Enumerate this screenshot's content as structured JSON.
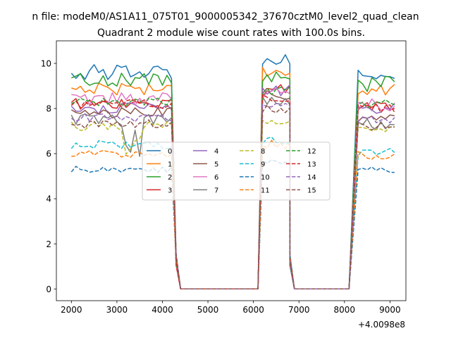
{
  "suptitle": "n file: modeM0/AS1A11_075T01_9000005342_37670cztM0_level2_quad_clean",
  "chart_data": {
    "type": "line",
    "title": "Quadrant 2 module wise count rates with 100.0s bins.",
    "xlabel": "",
    "ylabel": "",
    "x_offset_label": "+4.0098e8",
    "xlim": [
      1670,
      9350
    ],
    "ylim": [
      -0.52,
      11.0
    ],
    "xticks": [
      2000,
      3000,
      4000,
      5000,
      6000,
      7000,
      8000,
      9000
    ],
    "yticks": [
      0,
      2,
      4,
      6,
      8,
      10
    ],
    "grid": false,
    "legend": {
      "position": "center",
      "ncol": 4
    },
    "segments": [
      {
        "start": 2000,
        "end": 4200
      },
      {
        "start": 6200,
        "end": 6800
      },
      {
        "start": 8300,
        "end": 9100
      }
    ],
    "zero_gaps": [
      [
        4400,
        6100
      ],
      [
        6900,
        8100
      ]
    ],
    "series": [
      {
        "name": "0",
        "color": "#1f77b4",
        "dash": false,
        "seg_levels": [
          9.6,
          10.3,
          9.5
        ],
        "amp": 0.35,
        "dip": 0.0
      },
      {
        "name": "1",
        "color": "#ff7f0e",
        "dash": false,
        "seg_levels": [
          8.9,
          9.7,
          8.8
        ],
        "amp": 0.3,
        "dip": 0.0
      },
      {
        "name": "2",
        "color": "#2ca02c",
        "dash": false,
        "seg_levels": [
          9.3,
          9.3,
          9.1
        ],
        "amp": 0.35,
        "dip": 0.0
      },
      {
        "name": "3",
        "color": "#d62728",
        "dash": false,
        "seg_levels": [
          8.2,
          8.9,
          8.1
        ],
        "amp": 0.25,
        "dip": 0.0
      },
      {
        "name": "4",
        "color": "#9467bd",
        "dash": false,
        "seg_levels": [
          8.0,
          8.8,
          8.0
        ],
        "amp": 0.25,
        "dip": 0.0
      },
      {
        "name": "5",
        "color": "#8c564b",
        "dash": false,
        "seg_levels": [
          7.8,
          8.6,
          7.6
        ],
        "amp": 0.25,
        "dip": 0.0
      },
      {
        "name": "6",
        "color": "#e377c2",
        "dash": false,
        "seg_levels": [
          8.4,
          8.7,
          8.2
        ],
        "amp": 0.3,
        "dip": 0.0
      },
      {
        "name": "7",
        "color": "#7f7f7f",
        "dash": false,
        "seg_levels": [
          7.5,
          8.4,
          7.3
        ],
        "amp": 0.25,
        "dip": 1.7
      },
      {
        "name": "8",
        "color": "#bcbd22",
        "dash": true,
        "seg_levels": [
          7.2,
          7.3,
          7.0
        ],
        "amp": 0.2,
        "dip": 1.2
      },
      {
        "name": "9",
        "color": "#17becf",
        "dash": true,
        "seg_levels": [
          6.4,
          6.6,
          6.1
        ],
        "amp": 0.2,
        "dip": 0.0
      },
      {
        "name": "10",
        "color": "#1f77b4",
        "dash": true,
        "seg_levels": [
          5.3,
          5.6,
          5.3
        ],
        "amp": 0.15,
        "dip": 0.0
      },
      {
        "name": "11",
        "color": "#ff7f0e",
        "dash": true,
        "seg_levels": [
          6.0,
          6.4,
          5.9
        ],
        "amp": 0.2,
        "dip": 0.0
      },
      {
        "name": "12",
        "color": "#2ca02c",
        "dash": true,
        "seg_levels": [
          8.3,
          8.8,
          8.2
        ],
        "amp": 0.2,
        "dip": 0.0
      },
      {
        "name": "13",
        "color": "#d62728",
        "dash": true,
        "seg_levels": [
          8.2,
          8.5,
          8.0
        ],
        "amp": 0.2,
        "dip": 0.0
      },
      {
        "name": "14",
        "color": "#9467bd",
        "dash": true,
        "seg_levels": [
          7.6,
          8.2,
          7.5
        ],
        "amp": 0.2,
        "dip": 0.0
      },
      {
        "name": "15",
        "color": "#8c564b",
        "dash": true,
        "seg_levels": [
          7.3,
          8.0,
          7.2
        ],
        "amp": 0.2,
        "dip": 0.0
      }
    ]
  }
}
